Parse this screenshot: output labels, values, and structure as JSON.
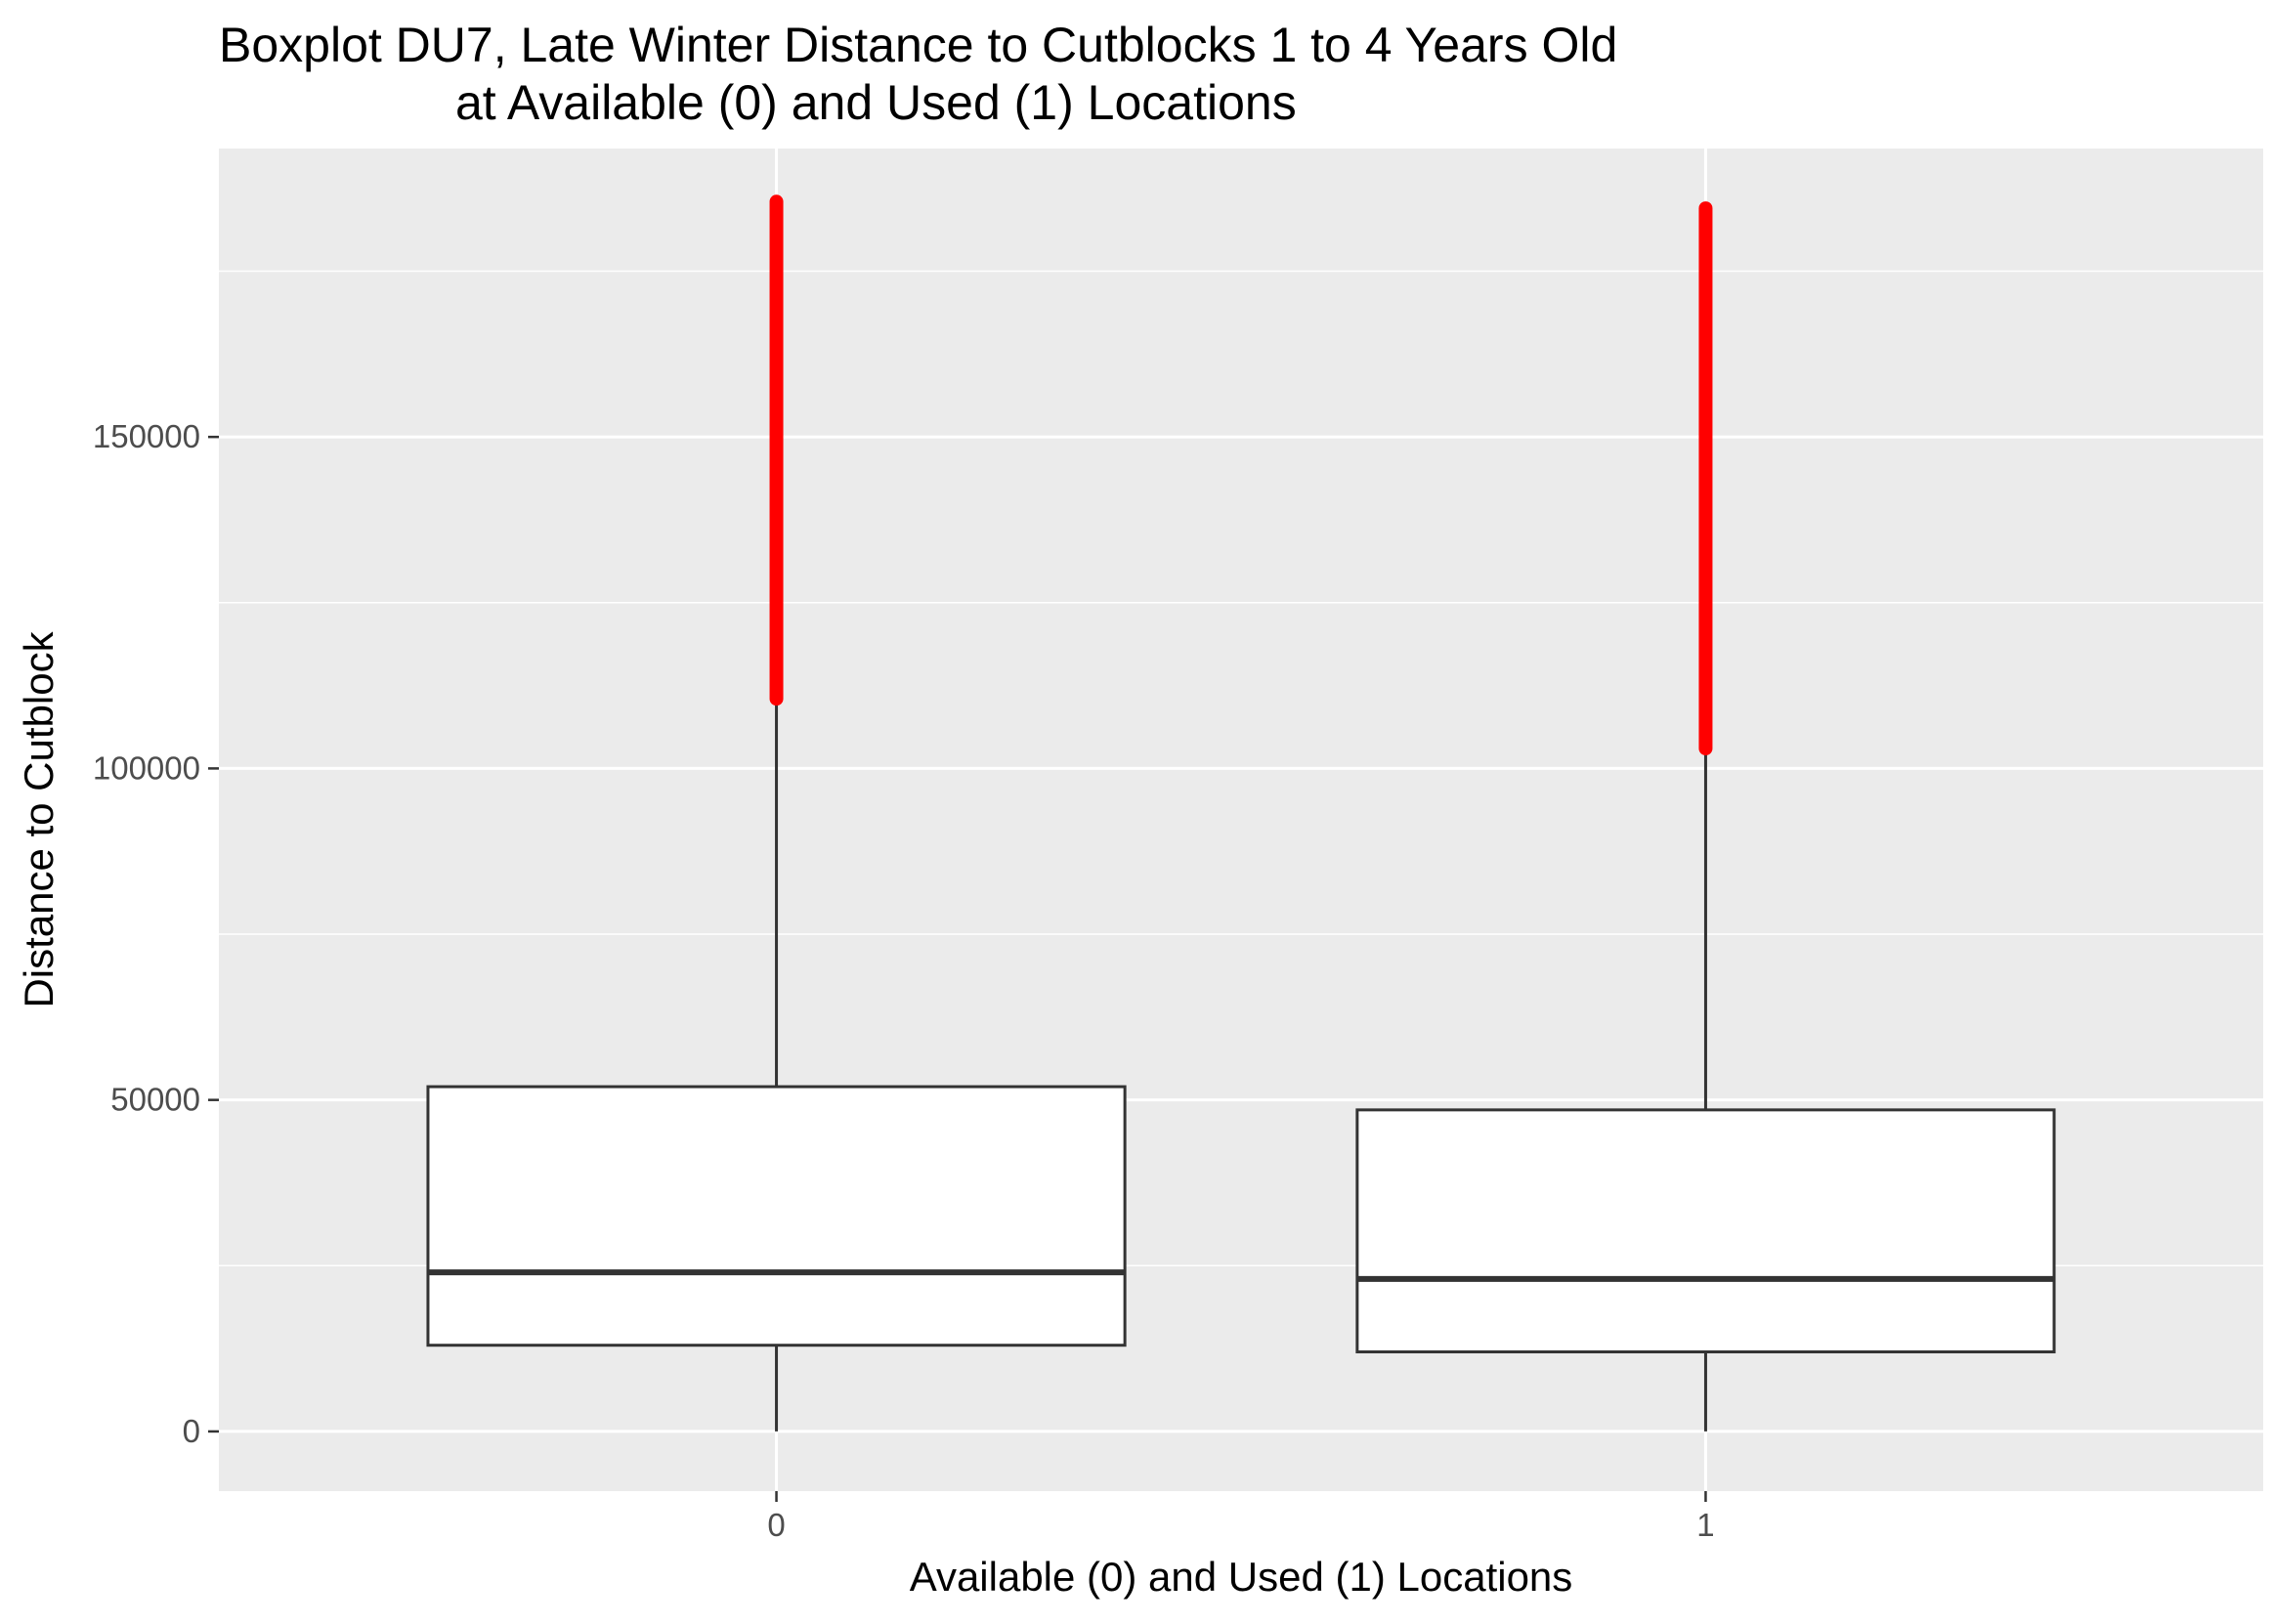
{
  "chart_data": {
    "type": "boxplot",
    "title": "Boxplot DU7, Late Winter Distance to Cutblocks 1 to 4 Years Old",
    "subtitle": "at Available (0) and Used (1) Locations",
    "xlabel": "Available (0) and Used (1) Locations",
    "ylabel": "Distance to Cutblock",
    "categories": [
      "0",
      "1"
    ],
    "ylim": [
      -9000,
      193500
    ],
    "y_ticks": [
      0,
      50000,
      100000,
      150000
    ],
    "y_tick_labels": [
      "0",
      "50000",
      "100000",
      "150000"
    ],
    "y_minor_ticks": [
      25000,
      75000,
      125000,
      175000
    ],
    "grid": true,
    "boxes": [
      {
        "category": "0",
        "min": 0,
        "q1": 13000,
        "median": 24000,
        "q3": 52000,
        "whisker_high": 110500,
        "outliers_range": [
          110500,
          185500
        ]
      },
      {
        "category": "1",
        "min": 0,
        "q1": 12000,
        "median": 23000,
        "q3": 48500,
        "whisker_high": 103000,
        "outliers_range": [
          103000,
          184500
        ]
      }
    ],
    "colors": {
      "panel_background": "#ebebeb",
      "grid": "#ffffff",
      "box_fill": "#ffffff",
      "box_line": "#333333",
      "outlier": "#ff0000"
    }
  }
}
